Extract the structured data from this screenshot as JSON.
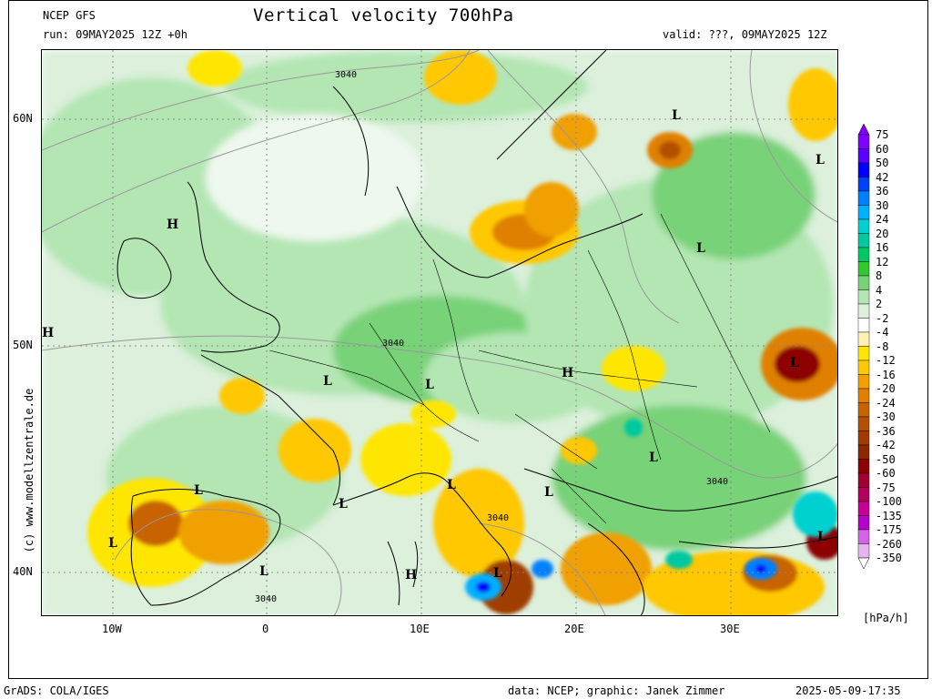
{
  "header": {
    "model": "NCEP GFS",
    "title": "Vertical velocity 700hPa",
    "run": "run: 09MAY2025 12Z +0h",
    "valid": "valid: ???, 09MAY2025 12Z"
  },
  "axes": {
    "lat_labels": [
      "60N",
      "50N",
      "40N"
    ],
    "lon_labels": [
      "10W",
      "0",
      "10E",
      "20E",
      "30E"
    ]
  },
  "side_text": "(c) www.modellzentrale.de",
  "legend": {
    "unit": "[hPa/h]",
    "labels": [
      "75",
      "60",
      "50",
      "42",
      "36",
      "30",
      "24",
      "20",
      "16",
      "12",
      "8",
      "4",
      "2",
      "-2",
      "-4",
      "-8",
      "-12",
      "-16",
      "-20",
      "-24",
      "-30",
      "-36",
      "-42",
      "-50",
      "-60",
      "-75",
      "-100",
      "-135",
      "-175",
      "-260",
      "-350"
    ],
    "colors": [
      "#8000ff",
      "#5a00ff",
      "#0000ff",
      "#0040ff",
      "#0080ff",
      "#00b0ff",
      "#00d0d0",
      "#00c8a0",
      "#00c864",
      "#32c832",
      "#78d278",
      "#b4e6b4",
      "#dcf0dc",
      "#ffffff",
      "#fff0b4",
      "#ffe600",
      "#ffc800",
      "#f0a000",
      "#e08000",
      "#c86400",
      "#b45000",
      "#a03c00",
      "#8c2800",
      "#8c0000",
      "#a00032",
      "#b4005a",
      "#c80096",
      "#b400c8",
      "#d264e6",
      "#e6b4f0"
    ]
  },
  "pressure_centers": [
    {
      "label": "L"
    },
    {
      "label": "L"
    },
    {
      "label": "L"
    },
    {
      "label": "L"
    },
    {
      "label": "L"
    },
    {
      "label": "L"
    },
    {
      "label": "L"
    },
    {
      "label": "L"
    },
    {
      "label": "L"
    },
    {
      "label": "L"
    },
    {
      "label": "L"
    },
    {
      "label": "L"
    },
    {
      "label": "L"
    },
    {
      "label": "L"
    },
    {
      "label": "H"
    },
    {
      "label": "H"
    },
    {
      "label": "H"
    },
    {
      "label": "H"
    }
  ],
  "contour_labels": [
    "3040",
    "3040",
    "3040",
    "3040",
    "3040"
  ],
  "footer": {
    "left": "GrADS: COLA/IGES",
    "credit": "data: NCEP; graphic: Janek Zimmer",
    "timestamp": "2025-05-09-17:35"
  },
  "colors": {
    "land_base": "#ffffff",
    "light_green": "#b4e6b4",
    "mid_green": "#78d278",
    "yellow": "#ffe600",
    "orange": "#f0a000",
    "brown": "#c86400",
    "dark_red": "#8c0000",
    "blue": "#0080ff"
  }
}
